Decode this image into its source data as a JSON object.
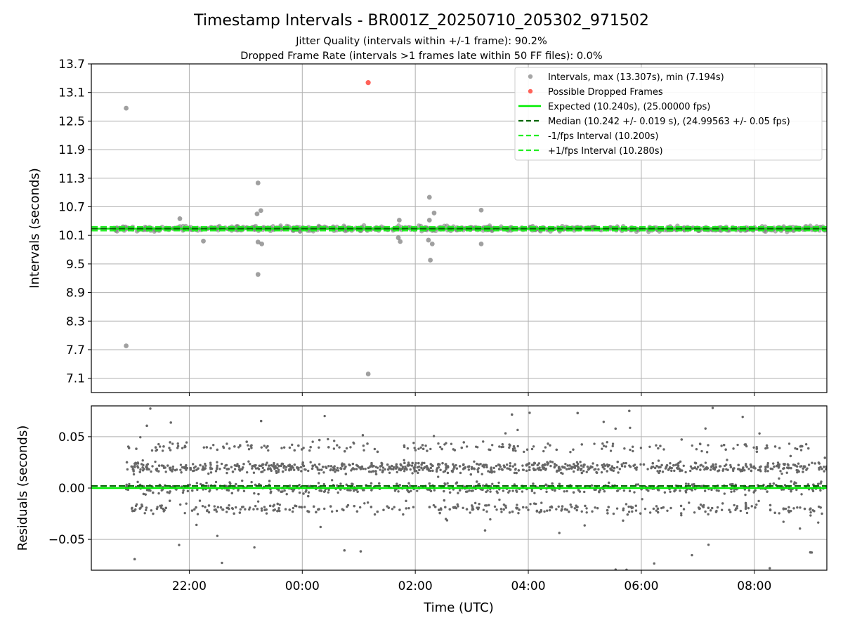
{
  "title": "Timestamp Intervals - BR001Z_20250710_205302_971502",
  "subtitle_lines": [
    "Jitter Quality (intervals within +/-1 frame): 90.2%",
    "Dropped Frame Rate (intervals >1 frames late within 50 FF files): 0.0%"
  ],
  "colors": {
    "intervals": "#808080",
    "dropped": "#ff3b30",
    "expected": "#00ee00",
    "median": "#006400",
    "bounds": "#22ee22",
    "residuals": "#666666",
    "grid": "#b0b0b0"
  },
  "chart_data": [
    {
      "type": "scatter",
      "name": "intervals",
      "xlabel": "",
      "ylabel": "Intervals (seconds)",
      "x_range": [
        "20:16",
        "09:17"
      ],
      "ylim": [
        6.8,
        13.7
      ],
      "y_ticks": [
        "13.7",
        "13.1",
        "12.5",
        "11.9",
        "11.3",
        "10.7",
        "10.1",
        "9.5",
        "8.9",
        "8.3",
        "7.7",
        "7.1"
      ],
      "y_tick_values": [
        13.7,
        13.1,
        12.5,
        11.9,
        11.3,
        10.7,
        10.1,
        9.5,
        8.9,
        8.3,
        7.7,
        7.1
      ],
      "x_ticks": [
        "22:00",
        "00:00",
        "02:00",
        "04:00",
        "06:00",
        "08:00"
      ],
      "grid": true,
      "legend_position": "top-right",
      "legend": [
        "Intervals, max (13.307s), min (7.194s)",
        "Possible Dropped Frames",
        "Expected (10.240s), (25.00000 fps)",
        "Median (10.242 +/- 0.019 s), (24.99563 +/- 0.05 fps)",
        "-1/fps Interval (10.200s)",
        "+1/fps Interval (10.280s)"
      ],
      "reference_lines": {
        "expected": 10.24,
        "median": 10.242,
        "minus_one_fps": 10.2,
        "plus_one_fps": 10.28
      },
      "series": [
        {
          "name": "Intervals, max (13.307s), min (7.194s)",
          "band": {
            "x_start": "20:40",
            "x_end": "09:17",
            "center": 10.24,
            "spread": 0.06
          },
          "points": [
            {
              "x": "20:53",
              "y": 12.77
            },
            {
              "x": "20:53",
              "y": 7.78
            },
            {
              "x": "21:50",
              "y": 10.45
            },
            {
              "x": "22:15",
              "y": 9.98
            },
            {
              "x": "23:13",
              "y": 11.2
            },
            {
              "x": "23:12",
              "y": 10.55
            },
            {
              "x": "23:16",
              "y": 10.62
            },
            {
              "x": "23:13",
              "y": 9.96
            },
            {
              "x": "23:17",
              "y": 9.92
            },
            {
              "x": "23:13",
              "y": 9.28
            },
            {
              "x": "01:10",
              "y": 7.19
            },
            {
              "x": "01:43",
              "y": 10.42
            },
            {
              "x": "01:42",
              "y": 10.05
            },
            {
              "x": "01:44",
              "y": 9.97
            },
            {
              "x": "02:15",
              "y": 10.9
            },
            {
              "x": "02:20",
              "y": 10.57
            },
            {
              "x": "02:15",
              "y": 10.42
            },
            {
              "x": "02:14",
              "y": 10.0
            },
            {
              "x": "02:18",
              "y": 9.92
            },
            {
              "x": "02:16",
              "y": 9.58
            },
            {
              "x": "03:10",
              "y": 10.63
            },
            {
              "x": "03:10",
              "y": 9.92
            }
          ]
        },
        {
          "name": "Possible Dropped Frames",
          "points": [
            {
              "x": "01:10",
              "y": 13.307
            }
          ]
        }
      ]
    },
    {
      "type": "scatter",
      "name": "residuals",
      "xlabel": "Time (UTC)",
      "ylabel": "Residuals (seconds)",
      "x_range": [
        "20:16",
        "09:17"
      ],
      "ylim": [
        -0.08,
        0.08
      ],
      "y_ticks": [
        "0.05",
        "0.00",
        "−0.05"
      ],
      "y_tick_values": [
        0.05,
        0.0,
        -0.05
      ],
      "x_ticks": [
        "22:00",
        "00:00",
        "02:00",
        "04:00",
        "06:00",
        "08:00"
      ],
      "grid": true,
      "reference_lines": {
        "zero": 0.0,
        "median_offset": 0.002
      },
      "series": [
        {
          "name": "residuals",
          "x_start": "20:53",
          "x_end": "09:17",
          "levels": [
            0.02,
            0.0,
            -0.02,
            0.04
          ],
          "level_spread": 0.006,
          "level_weights": [
            0.42,
            0.3,
            0.18,
            0.1
          ],
          "count": 2400
        }
      ]
    }
  ]
}
